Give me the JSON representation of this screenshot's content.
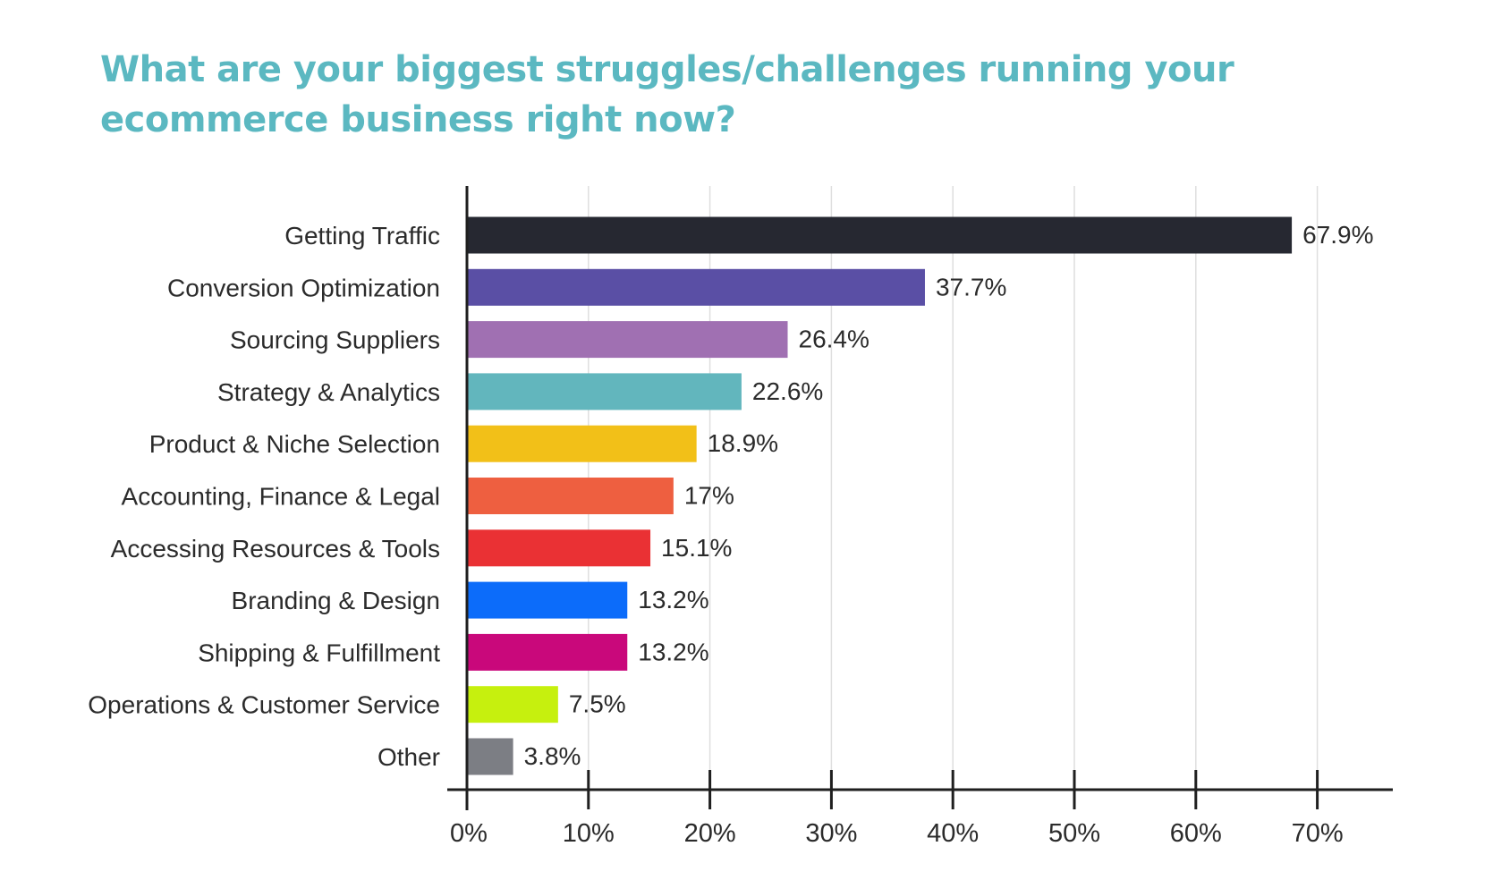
{
  "chart_data": {
    "type": "bar",
    "orientation": "horizontal",
    "title": "What are your biggest struggles/challenges running your ecommerce business right now?",
    "xlabel": "",
    "ylabel": "",
    "xlim": [
      0,
      70
    ],
    "grid": true,
    "categories": [
      "Getting Traffic",
      "Conversion Optimization",
      "Sourcing Suppliers",
      "Strategy & Analytics",
      "Product & Niche Selection",
      "Accounting, Finance & Legal",
      "Accessing Resources & Tools",
      "Branding & Design",
      "Shipping & Fulfillment",
      "Operations & Customer Service",
      "Other"
    ],
    "values": [
      67.9,
      37.7,
      26.4,
      22.6,
      18.9,
      17,
      15.1,
      13.2,
      13.2,
      7.5,
      3.8
    ],
    "value_labels": [
      "67.9%",
      "37.7%",
      "26.4%",
      "22.6%",
      "18.9%",
      "17%",
      "15.1%",
      "13.2%",
      "13.2%",
      "7.5%",
      "3.8%"
    ],
    "colors": [
      "#262831",
      "#5a4fa5",
      "#a070b2",
      "#62b6bd",
      "#f2c018",
      "#ee5f40",
      "#ea3134",
      "#0c6cfa",
      "#c9087b",
      "#c6f00e",
      "#7c7e84"
    ],
    "x_ticks": [
      0,
      10,
      20,
      30,
      40,
      50,
      60,
      70
    ],
    "x_tick_labels": [
      "0%",
      "10%",
      "20%",
      "30%",
      "40%",
      "50%",
      "60%",
      "70%"
    ]
  }
}
